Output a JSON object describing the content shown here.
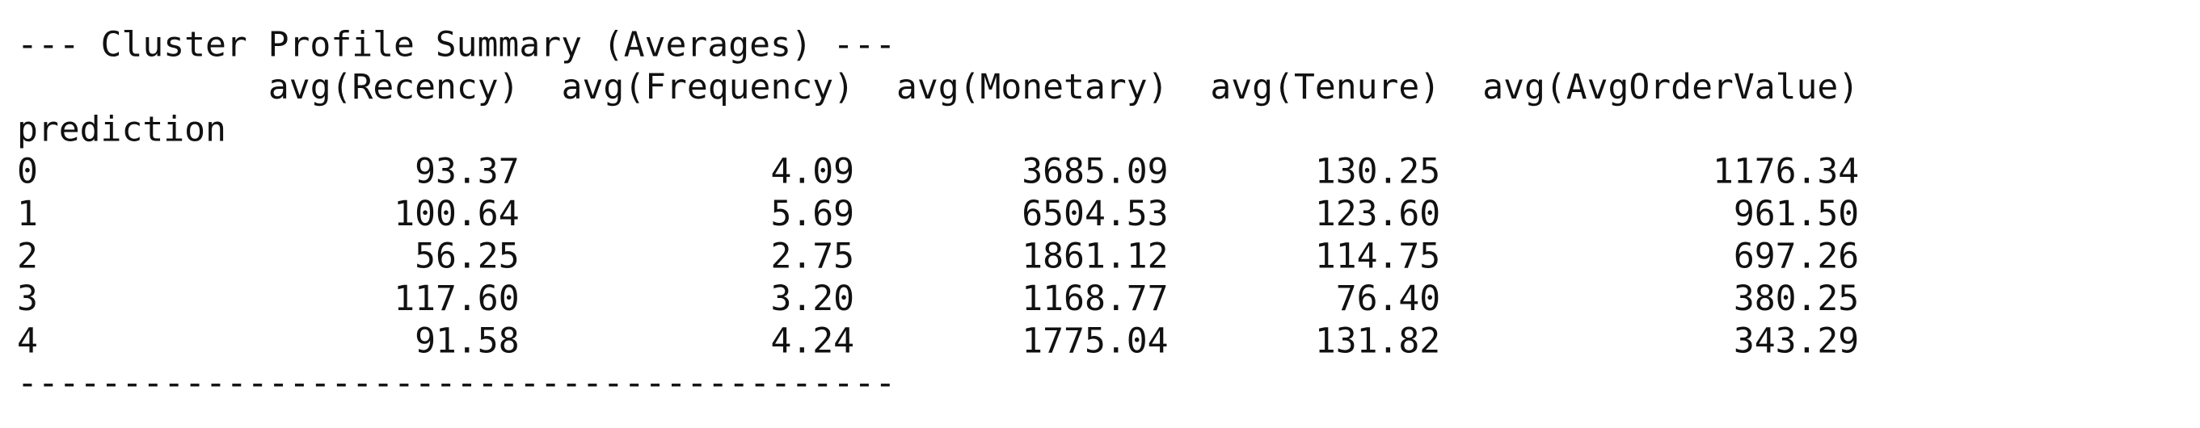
{
  "title": "--- Cluster Profile Summary (Averages) ---",
  "table": {
    "columns": [
      "avg(Recency)",
      "avg(Frequency)",
      "avg(Monetary)",
      "avg(Tenure)",
      "avg(AvgOrderValue)"
    ],
    "index_name": "prediction",
    "rows": [
      [
        "0",
        "93.37",
        "4.09",
        "3685.09",
        "130.25",
        "1176.34"
      ],
      [
        "1",
        "100.64",
        "5.69",
        "6504.53",
        "123.60",
        "961.50"
      ],
      [
        "2",
        "56.25",
        "2.75",
        "1861.12",
        "114.75",
        "697.26"
      ],
      [
        "3",
        "117.60",
        "3.20",
        "1168.77",
        "76.40",
        "380.25"
      ],
      [
        "4",
        "91.58",
        "4.24",
        "1775.04",
        "131.82",
        "343.29"
      ]
    ]
  },
  "footer": "------------------------------------------"
}
